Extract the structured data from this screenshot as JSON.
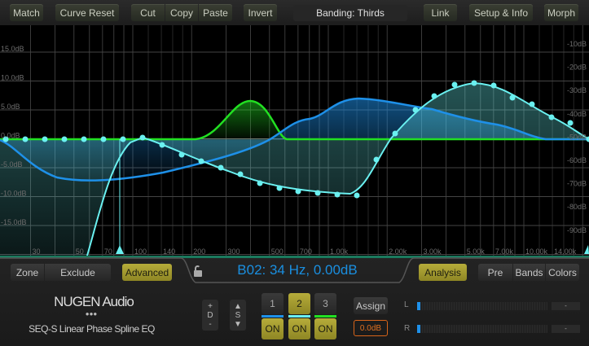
{
  "toolbar": {
    "match": "Match",
    "curve_reset": "Curve Reset",
    "cut": "Cut",
    "copy": "Copy",
    "paste": "Paste",
    "invert": "Invert",
    "banding": "Banding: Thirds",
    "link": "Link",
    "setup_info": "Setup & Info",
    "morph": "Morph"
  },
  "graph": {
    "db_left": [
      "15.0dB",
      "10.0dB",
      "5.0dB",
      "0.0dB",
      "-5.0dB",
      "-10.0dB",
      "-15.0dB"
    ],
    "db_right": [
      "-10dB",
      "-20dB",
      "-30dB",
      "-40dB",
      "-50dB",
      "-60dB",
      "-70dB",
      "-80dB",
      "-90dB"
    ],
    "freq_labels": [
      "30",
      "50",
      "70",
      "100",
      "140",
      "200",
      "300",
      "500",
      "700",
      "1.00k",
      "2.00k",
      "3.00k",
      "5.00k",
      "7.00k",
      "10.00k",
      "14.00k"
    ],
    "band_colors": {
      "band1": "#1e90e8",
      "band2": "#6af0f0",
      "band3": "#22e022"
    }
  },
  "panel": {
    "zone": "Zone",
    "exclude": "Exclude",
    "advanced": "Advanced",
    "readout": "B02: 34 Hz, 0.00dB",
    "analysis": "Analysis",
    "pre": "Pre",
    "bands": "Bands",
    "colors": "Colors"
  },
  "logo": {
    "brand": "NUGEN Audio",
    "product": "SEQ-S Linear Phase Spline EQ"
  },
  "controls": {
    "d_plus": "+",
    "d_label": "D",
    "d_minus": "-",
    "s_label": "S",
    "bands": [
      {
        "num": "1",
        "on": "ON"
      },
      {
        "num": "2",
        "on": "ON"
      },
      {
        "num": "3",
        "on": "ON"
      }
    ],
    "assign": "Assign",
    "gain": "0.0dB"
  },
  "meters": {
    "l": "L",
    "r": "R",
    "l_value": "-",
    "r_value": "-"
  }
}
